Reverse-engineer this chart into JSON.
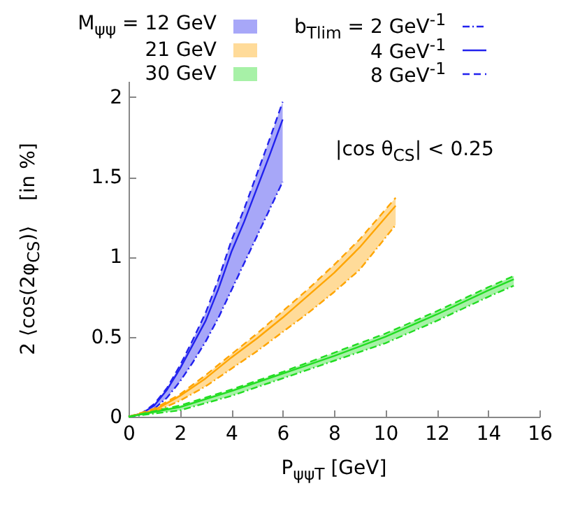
{
  "chart_data": {
    "type": "line",
    "xlabel": "P$_{ψψ}$$_{T}$ [GeV]",
    "ylabel": "2 ⟨cos(2φ$_{CS}$)⟩    [in %]",
    "annotations": [
      "|cos θ$_{CS}$| < 0.25",
      "M$_{ψψ}$ = 12 GeV",
      "21 GeV",
      "30 GeV"
    ],
    "xlim": [
      0,
      16
    ],
    "xticks": [
      0,
      2,
      4,
      6,
      8,
      10,
      12,
      14,
      16
    ],
    "ylim": [
      0,
      2.1
    ],
    "yticks": [
      {
        "value": 0,
        "label": "0"
      },
      {
        "value": 0.5,
        "label": "0.5"
      },
      {
        "value": 1,
        "label": "1"
      },
      {
        "value": 1.5,
        "label": "1.5"
      },
      {
        "value": 2,
        "label": "2"
      }
    ],
    "legend": "top",
    "series": [
      {
        "name": "b$_{Tlim}$ = 2 GeV$^{-1}$",
        "color": "#2222ee",
        "line_style": "dotted",
        "x": [
          0,
          0.5,
          1,
          1.5,
          2,
          2.5,
          3,
          3.5,
          4,
          4.5,
          5,
          5.5,
          6
        ],
        "values": [
          0,
          0.01,
          0.05,
          0.12,
          0.22,
          0.34,
          0.47,
          0.62,
          0.79,
          0.96,
          1.13,
          1.3,
          1.47
        ]
      },
      {
        "name": "4 GeV$^{-1}$",
        "color": "#2222ee",
        "line_style": "solid",
        "x": [
          0,
          0.5,
          1,
          1.5,
          2,
          2.5,
          3,
          3.5,
          4,
          4.5,
          5,
          5.5,
          6
        ],
        "values": [
          0,
          0.02,
          0.07,
          0.17,
          0.3,
          0.45,
          0.6,
          0.8,
          1.03,
          1.22,
          1.43,
          1.64,
          1.86
        ],
        "lower": [
          0,
          0.01,
          0.05,
          0.12,
          0.22,
          0.34,
          0.47,
          0.62,
          0.79,
          0.96,
          1.13,
          1.3,
          1.47
        ],
        "upper": [
          0,
          0.02,
          0.08,
          0.18,
          0.32,
          0.48,
          0.65,
          0.86,
          1.1,
          1.3,
          1.52,
          1.74,
          1.97
        ]
      },
      {
        "name": "8 GeV$^{-1}$",
        "color": "#2222ee",
        "line_style": "dashed",
        "x": [
          0,
          0.5,
          1,
          1.5,
          2,
          2.5,
          3,
          3.5,
          4,
          4.5,
          5,
          5.5,
          6
        ],
        "values": [
          0,
          0.02,
          0.08,
          0.18,
          0.32,
          0.48,
          0.65,
          0.86,
          1.1,
          1.3,
          1.52,
          1.74,
          1.97
        ]
      },
      {
        "color": "#ffa500",
        "line_style": "dotted",
        "x": [
          0,
          1,
          2,
          3,
          4,
          5,
          6,
          7,
          8,
          9,
          10.4
        ],
        "values": [
          0,
          0.03,
          0.1,
          0.19,
          0.3,
          0.41,
          0.53,
          0.65,
          0.78,
          0.92,
          1.2
        ]
      },
      {
        "color": "#ffa500",
        "line_style": "solid",
        "x": [
          0,
          1,
          2,
          3,
          4,
          5,
          6,
          7,
          8,
          9,
          10.4
        ],
        "values": [
          0,
          0.04,
          0.13,
          0.24,
          0.37,
          0.49,
          0.62,
          0.76,
          0.9,
          1.06,
          1.32
        ],
        "lower": [
          0,
          0.03,
          0.1,
          0.19,
          0.3,
          0.41,
          0.53,
          0.65,
          0.78,
          0.92,
          1.2
        ],
        "upper": [
          0,
          0.05,
          0.14,
          0.26,
          0.39,
          0.52,
          0.66,
          0.8,
          0.95,
          1.11,
          1.37
        ]
      },
      {
        "color": "#ffa500",
        "line_style": "dashed",
        "x": [
          0,
          1,
          2,
          3,
          4,
          5,
          6,
          7,
          8,
          9,
          10.4
        ],
        "values": [
          0,
          0.05,
          0.14,
          0.26,
          0.39,
          0.52,
          0.66,
          0.8,
          0.95,
          1.11,
          1.37
        ]
      },
      {
        "color": "#22dd22",
        "line_style": "dotted",
        "x": [
          0,
          2,
          4,
          6,
          8,
          10,
          12,
          14,
          15
        ],
        "values": [
          0,
          0.04,
          0.13,
          0.24,
          0.35,
          0.46,
          0.6,
          0.75,
          0.82
        ]
      },
      {
        "color": "#22dd22",
        "line_style": "solid",
        "x": [
          0,
          2,
          4,
          6,
          8,
          10,
          12,
          14,
          15
        ],
        "values": [
          0,
          0.06,
          0.16,
          0.27,
          0.38,
          0.5,
          0.64,
          0.79,
          0.86
        ],
        "lower": [
          0,
          0.04,
          0.13,
          0.24,
          0.35,
          0.46,
          0.6,
          0.75,
          0.82
        ],
        "upper": [
          0,
          0.07,
          0.17,
          0.28,
          0.4,
          0.52,
          0.66,
          0.81,
          0.88
        ]
      },
      {
        "color": "#22dd22",
        "line_style": "dashed",
        "x": [
          0,
          2,
          4,
          6,
          8,
          10,
          12,
          14,
          15
        ],
        "values": [
          0,
          0.07,
          0.17,
          0.28,
          0.4,
          0.52,
          0.66,
          0.81,
          0.88
        ]
      }
    ]
  }
}
